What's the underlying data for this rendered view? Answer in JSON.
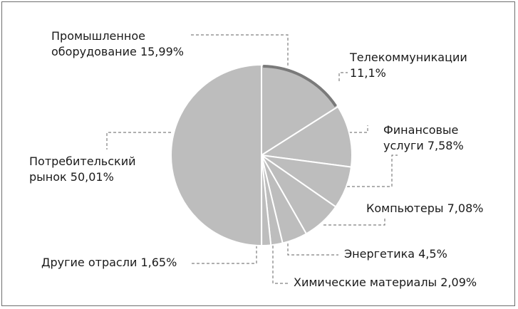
{
  "chart_data": {
    "type": "pie",
    "slices": [
      {
        "label": "Промышленное оборудование 15,99%",
        "value": 15.99,
        "color": "#bdbdbd"
      },
      {
        "label": "Телекоммуникации 11,1%",
        "value": 11.1,
        "color": "#bdbdbd"
      },
      {
        "label": "Финансовые услуги 7,58%",
        "value": 7.58,
        "color": "#bdbdbd"
      },
      {
        "label": "Компьютеры 7,08%",
        "value": 7.08,
        "color": "#bdbdbd"
      },
      {
        "label": "Энергетика 4,5%",
        "value": 4.5,
        "color": "#bdbdbd"
      },
      {
        "label": "Химические материалы 2,09%",
        "value": 2.09,
        "color": "#bdbdbd"
      },
      {
        "label": "Другие отрасли 1,65%",
        "value": 1.65,
        "color": "#bdbdbd"
      },
      {
        "label": "Потребительский рынок 50,01%",
        "value": 50.01,
        "color": "#bdbdbd"
      }
    ],
    "colors": {
      "slice": "#bdbdbd",
      "separator": "#ffffff",
      "highlight_rim": "#7a7a7a",
      "leader": "#7f7f7f"
    },
    "labels": {
      "industrial_1": "Промышленное",
      "industrial_2": "оборудование 15,99%",
      "telecom_1": "Телекоммуникации",
      "telecom_2": "11,1%",
      "finance_1": "Финансовые",
      "finance_2": "услуги 7,58%",
      "computers": "Компьютеры 7,08%",
      "energy": "Энергетика 4,5%",
      "chemicals": "Химические материалы 2,09%",
      "other": "Другие отрасли 1,65%",
      "consumer_1": "Потребительский",
      "consumer_2": "рынок 50,01%"
    }
  }
}
